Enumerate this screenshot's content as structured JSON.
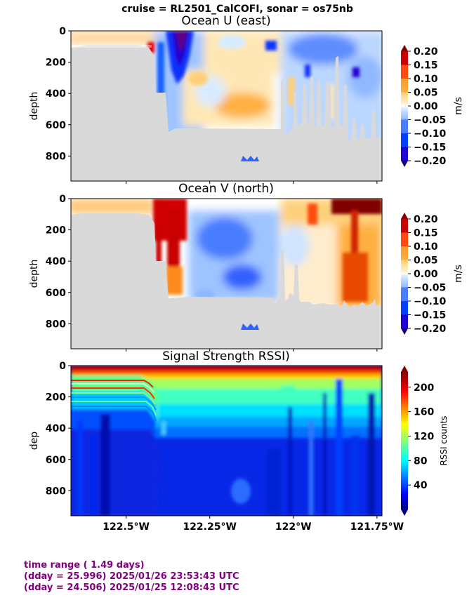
{
  "suptitle": "cruise = RL2501_CalCOFI,  sonar = os75nb",
  "footer": {
    "line1": "time range ( 1.49 days)",
    "line2": "(dday = 25.996) 2025/01/26 23:53:43 UTC",
    "line3": "(dday = 24.506) 2025/01/25 12:08:43 UTC"
  },
  "colors": {
    "land_gray": "#d9d9d9",
    "footer_purple": "#800080",
    "velocity_levels": [
      "#2000d0",
      "#0040ff",
      "#4a7cff",
      "#8fb8ff",
      "#d8ecff",
      "#fff2c8",
      "#ffd07a",
      "#ff9a2a",
      "#ff4a10",
      "#c80000",
      "#800000"
    ],
    "rssi_colormap": "jet"
  },
  "chart_data": [
    {
      "type": "heatmap",
      "title": "Ocean U (east)",
      "ylabel": "depth",
      "xlabel": "",
      "x_tick_labels": [],
      "y_ticks": [
        0,
        200,
        400,
        600,
        800
      ],
      "y_tick_labels": [
        "0",
        "200",
        "400",
        "600",
        "800"
      ],
      "ylim": [
        960,
        0
      ],
      "xlim": [
        -122.665,
        -121.735
      ],
      "colorbar": {
        "label": "m/s",
        "ticks": [
          "0.20",
          "0.15",
          "0.10",
          "0.05",
          "0.00",
          "−0.05",
          "−0.10",
          "−0.15",
          "−0.20"
        ],
        "range": [
          -0.2,
          0.2
        ]
      },
      "field": "east velocity",
      "missing_data": "gray (bottom / no data)"
    },
    {
      "type": "heatmap",
      "title": "Ocean V (north)",
      "ylabel": "depth",
      "xlabel": "",
      "x_tick_labels": [],
      "y_ticks": [
        0,
        200,
        400,
        600,
        800
      ],
      "y_tick_labels": [
        "0",
        "200",
        "400",
        "600",
        "800"
      ],
      "ylim": [
        960,
        0
      ],
      "xlim": [
        -122.665,
        -121.735
      ],
      "colorbar": {
        "label": "m/s",
        "ticks": [
          "0.20",
          "0.15",
          "0.10",
          "0.05",
          "0.00",
          "−0.05",
          "−0.10",
          "−0.15",
          "−0.20"
        ],
        "range": [
          -0.2,
          0.2
        ]
      },
      "field": "north velocity",
      "missing_data": "gray (bottom / no data)"
    },
    {
      "type": "heatmap",
      "title": "Signal Strength RSSI)",
      "ylabel": "dep",
      "xlabel": "",
      "x_ticks": [
        -122.5,
        -122.25,
        -122.0,
        -121.75
      ],
      "x_tick_labels": [
        "122.5°W",
        "122.25°W",
        "122°W",
        "121.75°W"
      ],
      "y_ticks": [
        0,
        200,
        400,
        600,
        800
      ],
      "y_tick_labels": [
        "0",
        "200",
        "400",
        "600",
        "800"
      ],
      "ylim": [
        960,
        0
      ],
      "xlim": [
        -122.665,
        -121.735
      ],
      "colorbar": {
        "label": "RSSI counts",
        "ticks": [
          "200",
          "160",
          "120",
          "80",
          "40"
        ],
        "tick_values": [
          200,
          160,
          120,
          80,
          40
        ],
        "range": [
          0,
          225
        ]
      },
      "field": "RSSI counts"
    }
  ]
}
